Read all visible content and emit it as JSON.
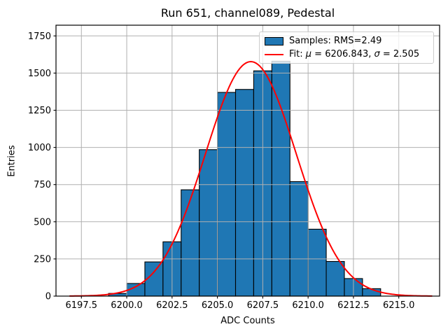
{
  "title": "Run 651, channel089, Pedestal",
  "xlabel": "ADC Counts",
  "ylabel": "Entries",
  "legend": {
    "samples": "Samples: RMS=2.49",
    "fit": "Fit: μ = 6206.843, σ = 2.505"
  },
  "colors": {
    "bar_fill": "#1f77b4",
    "bar_edge": "#000000",
    "fit_line": "#ff0000",
    "grid": "#b0b0b0",
    "spine": "#000000",
    "background": "#ffffff"
  },
  "chart_data": {
    "type": "bar",
    "title": "Run 651, channel089, Pedestal",
    "xlabel": "ADC Counts",
    "ylabel": "Entries",
    "bin_edges": [
      6199,
      6200,
      6201,
      6202,
      6203,
      6204,
      6205,
      6206,
      6207,
      6208,
      6209,
      6210,
      6211,
      6212,
      6213,
      6214
    ],
    "counts": [
      18,
      85,
      230,
      365,
      715,
      985,
      1370,
      1390,
      1515,
      1580,
      770,
      450,
      233,
      118,
      50
    ],
    "fit": {
      "type": "gaussian",
      "mu": 6206.843,
      "sigma": 2.505,
      "amplitude": 1577,
      "rms_label": 2.49
    },
    "xlim": [
      6196.1,
      6217.25
    ],
    "ylim": [
      0,
      1822
    ],
    "grid": true,
    "legend_position": "upper right",
    "xticks": {
      "values": [
        6197.5,
        6200.0,
        6202.5,
        6205.0,
        6207.5,
        6210.0,
        6212.5,
        6215.0
      ],
      "labels": [
        "6197.5",
        "6200.0",
        "6202.5",
        "6205.0",
        "6207.5",
        "6210.0",
        "6212.5",
        "6215.0"
      ]
    },
    "yticks": {
      "values": [
        0,
        250,
        500,
        750,
        1000,
        1250,
        1500,
        1750
      ],
      "labels": [
        "0",
        "250",
        "500",
        "750",
        "1000",
        "1250",
        "1500",
        "1750"
      ]
    }
  }
}
